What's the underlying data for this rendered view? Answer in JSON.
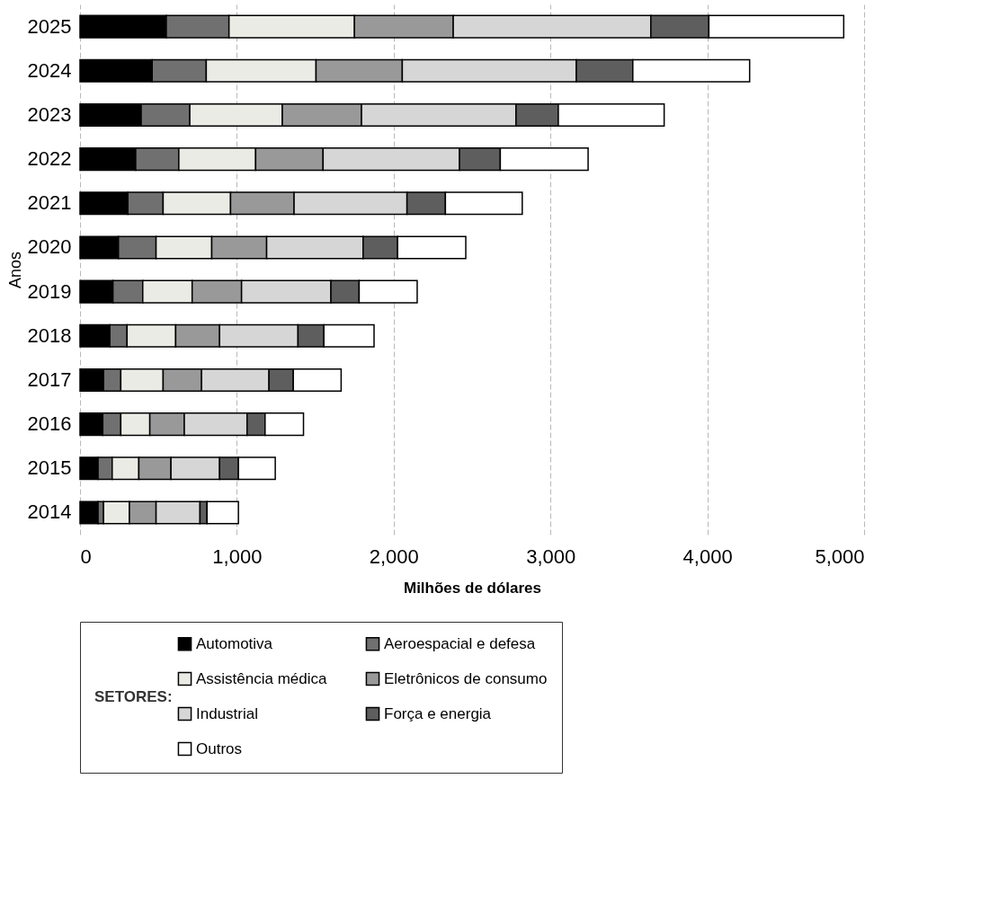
{
  "chart_data": {
    "type": "bar",
    "orientation": "horizontal",
    "stacked": true,
    "xlabel": "Milhões de dólares",
    "ylabel": "Anos",
    "legend_title": "SETORES:",
    "legend": "bottom",
    "grid": "x",
    "categories": [
      "2025",
      "2024",
      "2023",
      "2022",
      "2021",
      "2020",
      "2019",
      "2018",
      "2017",
      "2016",
      "2015",
      "2014"
    ],
    "xlim": [
      0,
      5000
    ],
    "xticks": [
      0,
      {
        "value": 1000,
        "label": "1,000"
      },
      {
        "value": 2000,
        "label": "2,000"
      },
      {
        "value": 3000,
        "label": "3,000"
      },
      {
        "value": 4000,
        "label": "4,000"
      },
      {
        "value": 5000,
        "label": "5,000"
      }
    ],
    "series": [
      {
        "name": "Automotiva",
        "color": "#000000",
        "values": [
          550,
          460,
          390,
          355,
          305,
          245,
          210,
          190,
          150,
          145,
          115,
          115
        ]
      },
      {
        "name": "Aeroespacial e defesa",
        "color": "#707070",
        "values": [
          400,
          345,
          310,
          275,
          225,
          240,
          190,
          110,
          110,
          115,
          90,
          35
        ]
      },
      {
        "name": "Assistência médica",
        "color": "#ebebe6",
        "values": [
          800,
          700,
          590,
          490,
          430,
          355,
          315,
          310,
          270,
          185,
          170,
          165
        ]
      },
      {
        "name": "Eletrônicos de consumo",
        "color": "#999999",
        "values": [
          630,
          550,
          505,
          430,
          405,
          350,
          315,
          280,
          245,
          220,
          205,
          170
        ]
      },
      {
        "name": "Industrial",
        "color": "#d6d6d6",
        "values": [
          1260,
          1110,
          985,
          870,
          720,
          615,
          570,
          500,
          430,
          400,
          310,
          280
        ]
      },
      {
        "name": "Força e energia",
        "color": "#5e5e5e",
        "values": [
          370,
          360,
          270,
          260,
          245,
          220,
          180,
          165,
          155,
          115,
          120,
          45
        ]
      },
      {
        "name": "Outros",
        "color": "#ffffff",
        "values": [
          860,
          745,
          675,
          560,
          490,
          435,
          370,
          320,
          305,
          245,
          235,
          200
        ]
      }
    ]
  }
}
